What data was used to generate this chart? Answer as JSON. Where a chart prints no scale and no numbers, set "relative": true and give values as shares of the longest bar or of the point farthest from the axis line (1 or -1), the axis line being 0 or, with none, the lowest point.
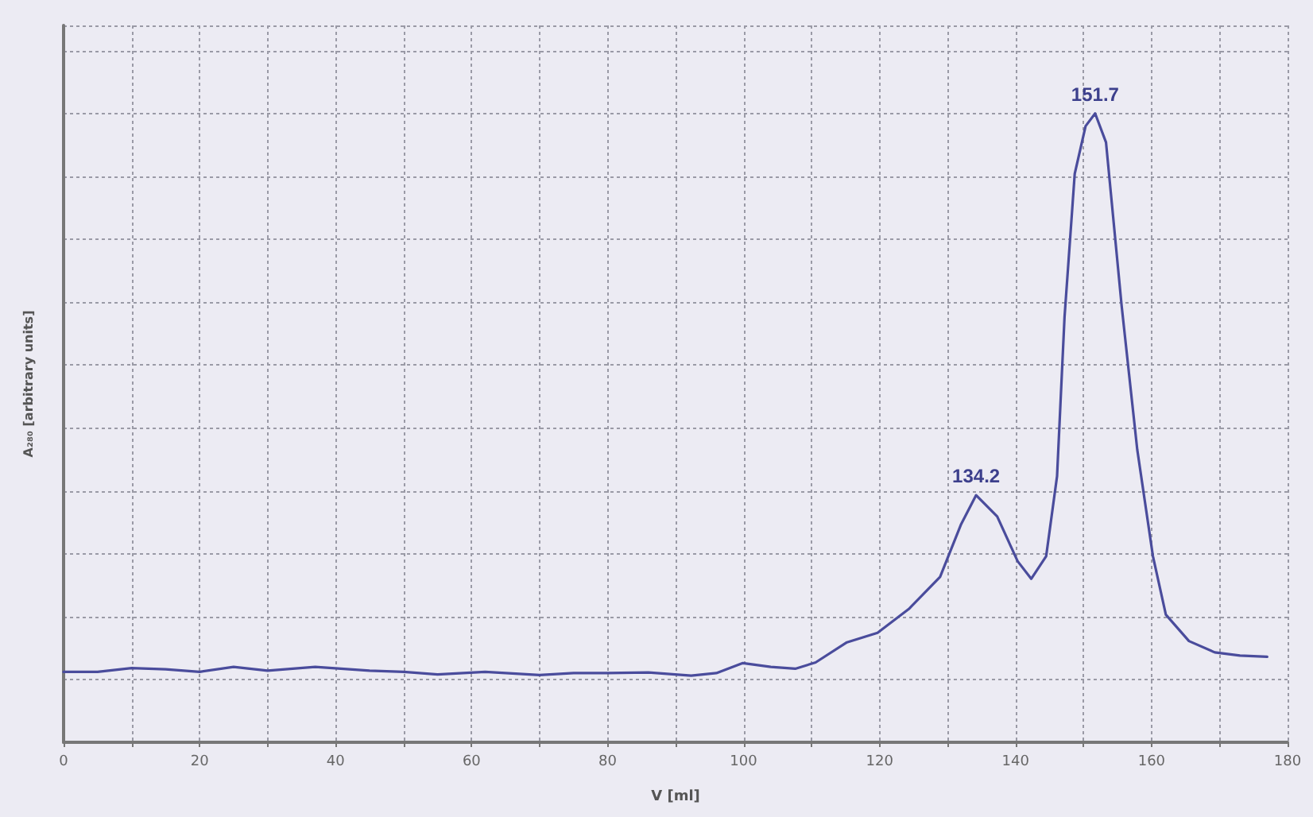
{
  "chart_data": {
    "type": "line",
    "relative": true,
    "xlabel": "V [ml]",
    "ylabel": "A₂₈₀ [arbitrary units]",
    "x": [
      0,
      5,
      10,
      15,
      20,
      25,
      30,
      37,
      45,
      50,
      55,
      62,
      70,
      75,
      80,
      86,
      92.3,
      96,
      99.9,
      104,
      107.6,
      110.6,
      115.2,
      119.7,
      124.3,
      128.9,
      132,
      134.2,
      137.3,
      140.3,
      142.3,
      144.5,
      146.1,
      147.2,
      148.7,
      150.3,
      151.7,
      153.3,
      155.6,
      157.9,
      160.2,
      162.1,
      165.5,
      169.3,
      173,
      177
    ],
    "series": [
      {
        "color": "#4a4c9c",
        "values": [
          0.112,
          0.112,
          0.118,
          0.116,
          0.112,
          0.12,
          0.114,
          0.12,
          0.114,
          0.112,
          0.108,
          0.112,
          0.107,
          0.11,
          0.11,
          0.111,
          0.106,
          0.11,
          0.126,
          0.12,
          0.117,
          0.127,
          0.159,
          0.174,
          0.212,
          0.263,
          0.347,
          0.393,
          0.359,
          0.288,
          0.26,
          0.296,
          0.423,
          0.676,
          0.904,
          0.98,
          1.0,
          0.954,
          0.694,
          0.465,
          0.296,
          0.203,
          0.161,
          0.143,
          0.138,
          0.136
        ]
      }
    ],
    "xlim": [
      0,
      180
    ],
    "xticks": [
      0,
      {
        "value": 10,
        "label": null
      },
      20,
      {
        "value": 30,
        "label": null
      },
      40,
      {
        "value": 50,
        "label": null
      },
      60,
      {
        "value": 70,
        "label": null
      },
      80,
      {
        "value": 90,
        "label": null
      },
      100,
      {
        "value": 110,
        "label": null
      },
      120,
      {
        "value": 130,
        "label": null
      },
      140,
      {
        "value": 150,
        "label": null
      },
      160,
      {
        "value": 170,
        "label": null
      },
      180
    ],
    "annotations": [
      {
        "text": "134.2",
        "x": 134.2,
        "y": 0.393
      },
      {
        "text": "151.7",
        "x": 151.7,
        "y": 1.0
      }
    ],
    "grid": true,
    "marker": "none",
    "line_style": "solid"
  }
}
